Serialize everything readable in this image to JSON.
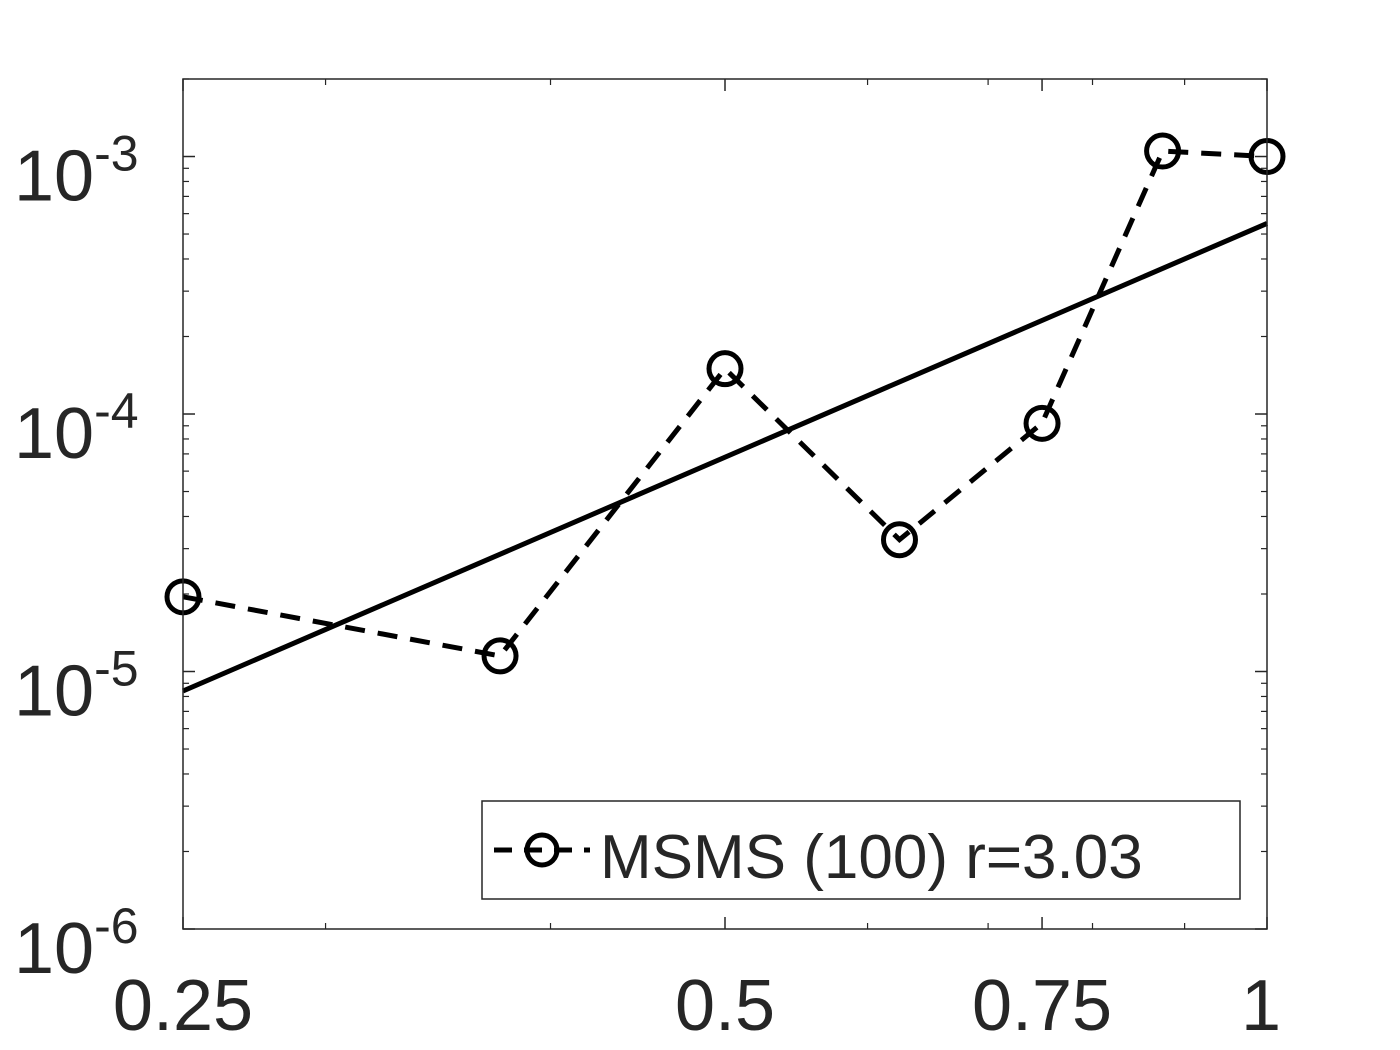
{
  "chart_data": {
    "type": "line",
    "xscale": "log",
    "yscale": "log",
    "xlim": [
      0.25,
      1
    ],
    "ylim": [
      1e-06,
      0.002
    ],
    "xticks": [
      {
        "value": 0.25,
        "label": "0.25"
      },
      {
        "value": 0.5,
        "label": "0.5"
      },
      {
        "value": 0.75,
        "label": "0.75"
      },
      {
        "value": 1,
        "label": "1"
      }
    ],
    "yticks": [
      {
        "value": 1e-06,
        "base": "10",
        "exp": "-6"
      },
      {
        "value": 1e-05,
        "base": "10",
        "exp": "-5"
      },
      {
        "value": 0.0001,
        "base": "10",
        "exp": "-4"
      },
      {
        "value": 0.001,
        "base": "10",
        "exp": "-3"
      }
    ],
    "grid": false,
    "legend_position": "bottom-right",
    "series": [
      {
        "name": "MSMS (100) r=3.03",
        "style": "dashed",
        "marker": "circle",
        "color": "#000000",
        "x": [
          0.25,
          0.375,
          0.5,
          0.625,
          0.75,
          0.875,
          1.0
        ],
        "y": [
          1.95e-05,
          1.15e-05,
          0.00015,
          3.25e-05,
          9.2e-05,
          0.00105,
          0.001
        ]
      },
      {
        "style": "solid",
        "color": "#000000",
        "x": [
          0.25,
          1.0
        ],
        "y": [
          8.4e-06,
          0.00055
        ]
      }
    ]
  }
}
